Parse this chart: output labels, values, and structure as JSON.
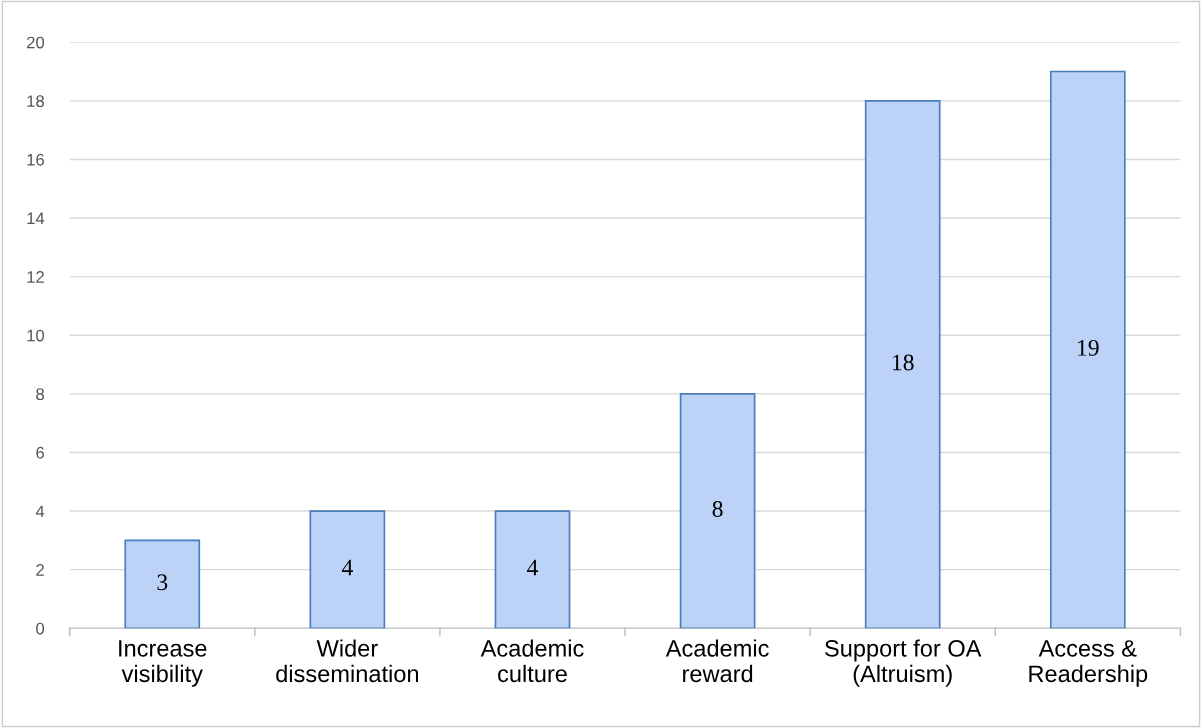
{
  "chart_data": {
    "type": "bar",
    "categories": [
      "Increase\nvisibility",
      "Wider\ndissemination",
      "Academic\nculture",
      "Academic\nreward",
      "Support for OA\n(Altruism)",
      "Access &\nReadership"
    ],
    "values": [
      3,
      4,
      4,
      8,
      18,
      19
    ],
    "color": "#bcd2f7",
    "ylim": [
      0,
      20
    ],
    "yticks": [
      0,
      2,
      4,
      6,
      8,
      10,
      12,
      14,
      16,
      18,
      20
    ],
    "grid": "y",
    "data_labels": true
  }
}
